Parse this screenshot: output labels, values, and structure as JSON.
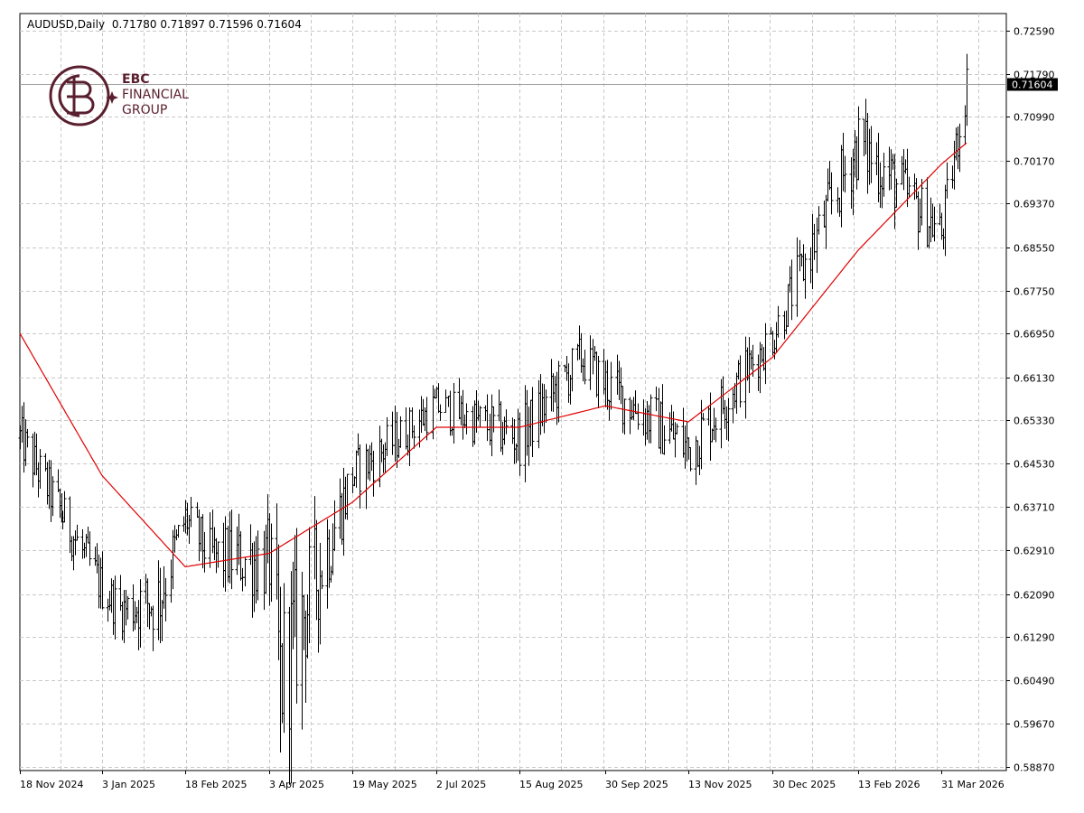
{
  "header": {
    "symbol": "AUDUSD,Daily",
    "ohlc": "0.71780 0.71897 0.71596 0.71604"
  },
  "logo": {
    "line1": "EBC",
    "line2": "FINANCIAL",
    "line3": "GROUP"
  },
  "colors": {
    "candle": "#000000",
    "ma": "#e00000",
    "grid": "#c8c8c8",
    "price_marker_bg": "#000000",
    "price_marker_text": "#ffffff",
    "brand": "#5a1f2e"
  },
  "chart_data": {
    "type": "ohlc",
    "title": "AUDUSD,Daily",
    "grid": true,
    "ylim": [
      0.5887,
      0.7259
    ],
    "y_ticks": [
      "0.72590",
      "0.71790",
      "0.70990",
      "0.70170",
      "0.69370",
      "0.68550",
      "0.67750",
      "0.66950",
      "0.66130",
      "0.65330",
      "0.64530",
      "0.63710",
      "0.62910",
      "0.62090",
      "0.61290",
      "0.60490",
      "0.59670",
      "0.58870"
    ],
    "x_ticks": [
      "18 Nov 2024",
      "3 Jan 2025",
      "18 Feb 2025",
      "3 Apr 2025",
      "19 May 2025",
      "2 Jul 2025",
      "15 Aug 2025",
      "30 Sep 2025",
      "13 Nov 2025",
      "30 Dec 2025",
      "13 Feb 2026",
      "31 Mar 2026"
    ],
    "current_price": "0.71604",
    "ohlc_keypoints": [
      {
        "date": "18 Nov 2024",
        "close": 0.65,
        "high": 0.656,
        "low": 0.645
      },
      {
        "date": "3 Jan 2025",
        "close": 0.622,
        "high": 0.628,
        "low": 0.617
      },
      {
        "date": "13 Jan 2025",
        "close": 0.618,
        "high": 0.623,
        "low": 0.613
      },
      {
        "date": "3 Feb 2025",
        "close": 0.62,
        "high": 0.628,
        "low": 0.609
      },
      {
        "date": "18 Feb 2025",
        "close": 0.635,
        "high": 0.64,
        "low": 0.63
      },
      {
        "date": "3 Mar 2025",
        "close": 0.628,
        "high": 0.633,
        "low": 0.62
      },
      {
        "date": "3 Apr 2025",
        "close": 0.627,
        "high": 0.63,
        "low": 0.61
      },
      {
        "date": "9 Apr 2025",
        "close": 0.605,
        "high": 0.63,
        "low": 0.5914
      },
      {
        "date": "19 May 2025",
        "close": 0.643,
        "high": 0.65,
        "low": 0.638
      },
      {
        "date": "2 Jul 2025",
        "close": 0.656,
        "high": 0.66,
        "low": 0.651
      },
      {
        "date": "15 Aug 2025",
        "close": 0.65,
        "high": 0.655,
        "low": 0.642
      },
      {
        "date": "17 Sep 2025",
        "close": 0.665,
        "high": 0.671,
        "low": 0.66
      },
      {
        "date": "30 Sep 2025",
        "close": 0.66,
        "high": 0.662,
        "low": 0.65
      },
      {
        "date": "13 Nov 2025",
        "close": 0.648,
        "high": 0.656,
        "low": 0.642
      },
      {
        "date": "30 Dec 2025",
        "close": 0.669,
        "high": 0.675,
        "low": 0.665
      },
      {
        "date": "13 Feb 2026",
        "close": 0.705,
        "high": 0.715,
        "low": 0.698
      },
      {
        "date": "31 Mar 2026",
        "close": 0.688,
        "high": 0.695,
        "low": 0.683
      },
      {
        "date": "14 Apr 2026",
        "close": 0.716,
        "high": 0.722,
        "low": 0.711
      }
    ],
    "ma_keypoints": [
      {
        "date": "18 Nov 2024",
        "value": 0.6695
      },
      {
        "date": "3 Jan 2025",
        "value": 0.643
      },
      {
        "date": "18 Feb 2025",
        "value": 0.626
      },
      {
        "date": "3 Apr 2025",
        "value": 0.6285
      },
      {
        "date": "19 May 2025",
        "value": 0.638
      },
      {
        "date": "2 Jul 2025",
        "value": 0.652
      },
      {
        "date": "15 Aug 2025",
        "value": 0.652
      },
      {
        "date": "30 Sep 2025",
        "value": 0.656
      },
      {
        "date": "13 Nov 2025",
        "value": 0.653
      },
      {
        "date": "30 Dec 2025",
        "value": 0.665
      },
      {
        "date": "13 Feb 2026",
        "value": 0.685
      },
      {
        "date": "31 Mar 2026",
        "value": 0.701
      },
      {
        "date": "14 Apr 2026",
        "value": 0.705
      }
    ]
  }
}
